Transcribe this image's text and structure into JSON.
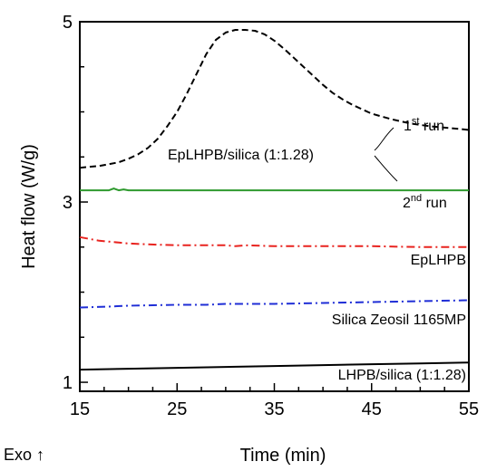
{
  "chart_data": {
    "type": "line",
    "xlabel": "Time (min)",
    "ylabel": "Heat flow (W/g)",
    "xlim": [
      15,
      55
    ],
    "ylim": [
      0.9,
      5
    ],
    "x_ticks": [
      {
        "value": 15,
        "label": "15"
      },
      {
        "value": 25,
        "label": "25"
      },
      {
        "value": 35,
        "label": "35"
      },
      {
        "value": 45,
        "label": "45"
      },
      {
        "value": 55,
        "label": "55"
      }
    ],
    "y_ticks": [
      {
        "value": 1,
        "label": "1"
      },
      {
        "value": 3,
        "label": "3"
      },
      {
        "value": 5,
        "label": "5"
      }
    ],
    "corner_label": "Exo ↑",
    "grid": false,
    "series": [
      {
        "color": "#000000",
        "style": "dashed",
        "x": [
          15,
          17,
          19,
          20,
          21,
          22,
          23,
          24,
          25,
          26,
          27,
          28,
          29,
          30,
          31,
          32,
          33,
          34,
          35,
          36,
          37,
          38,
          39,
          40,
          41,
          42,
          43,
          44,
          45,
          47,
          49,
          51,
          53,
          55
        ],
        "y": [
          3.38,
          3.4,
          3.44,
          3.48,
          3.53,
          3.6,
          3.7,
          3.84,
          4.0,
          4.2,
          4.42,
          4.64,
          4.8,
          4.88,
          4.91,
          4.91,
          4.9,
          4.86,
          4.79,
          4.7,
          4.6,
          4.5,
          4.4,
          4.3,
          4.21,
          4.14,
          4.08,
          4.03,
          3.98,
          3.92,
          3.87,
          3.84,
          3.82,
          3.8
        ]
      },
      {
        "color": "#2e9a2e",
        "style": "solid",
        "x": [
          15,
          18,
          18.5,
          19,
          19.5,
          20,
          25,
          35,
          45,
          55
        ],
        "y": [
          3.13,
          3.13,
          3.15,
          3.13,
          3.14,
          3.13,
          3.13,
          3.13,
          3.13,
          3.13
        ]
      },
      {
        "color": "#e8231f",
        "style": "dashdot",
        "x": [
          15,
          16,
          17,
          18,
          19,
          20,
          22,
          25,
          28,
          30,
          31,
          32,
          35,
          40,
          45,
          50,
          55
        ],
        "y": [
          2.61,
          2.59,
          2.57,
          2.56,
          2.55,
          2.54,
          2.53,
          2.52,
          2.52,
          2.52,
          2.51,
          2.52,
          2.51,
          2.51,
          2.51,
          2.5,
          2.5
        ]
      },
      {
        "color": "#1f2ed6",
        "style": "dashdot",
        "x": [
          15,
          18,
          20,
          25,
          28,
          30,
          35,
          40,
          45,
          50,
          55
        ],
        "y": [
          1.83,
          1.84,
          1.85,
          1.86,
          1.86,
          1.87,
          1.87,
          1.88,
          1.89,
          1.9,
          1.91
        ]
      },
      {
        "color": "#000000",
        "style": "solid",
        "x": [
          15,
          20,
          25,
          30,
          35,
          40,
          45,
          50,
          55
        ],
        "y": [
          1.14,
          1.15,
          1.16,
          1.17,
          1.18,
          1.19,
          1.2,
          1.21,
          1.22
        ]
      }
    ],
    "annotations": {
      "group_label": "EpLHPB/silica (1:1.28)",
      "run1_base": "1",
      "run1_sup": "st",
      "run1_tail": " run",
      "run2_base": "2",
      "run2_sup": "nd",
      "run2_tail": " run",
      "eplhpb": "EpLHPB",
      "silica": "Silica Zeosil 1165MP",
      "lhpb": "LHPB/silica (1:1.28)"
    }
  }
}
